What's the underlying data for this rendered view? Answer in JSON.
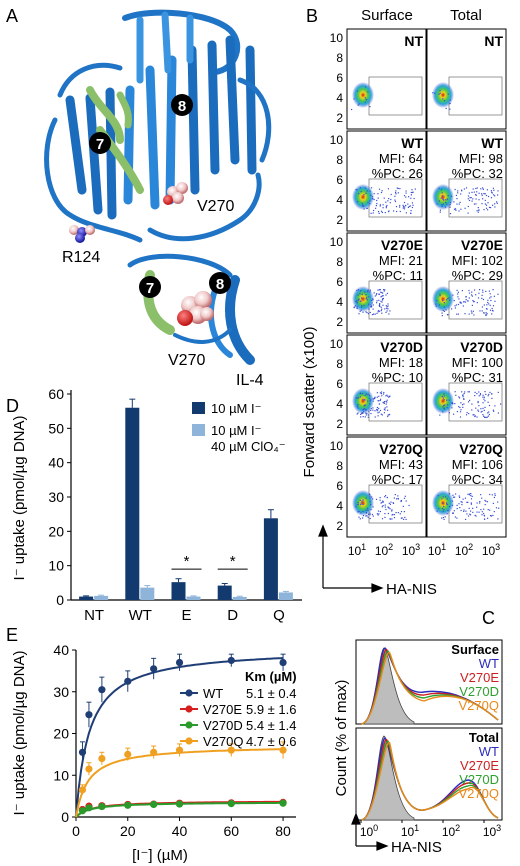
{
  "panel_letters": {
    "a": "A",
    "b": "B",
    "c": "C",
    "d": "D",
    "e": "E"
  },
  "panelA": {
    "helix_labels": [
      "8",
      "7"
    ],
    "residue_labels": [
      "V270",
      "R124"
    ],
    "inset": {
      "helix_labels": [
        "7",
        "8"
      ],
      "residue_label": "V270",
      "loop_label": "IL-4"
    }
  },
  "panelB": {
    "col_headers": [
      "Surface",
      "Total"
    ],
    "rows": [
      {
        "name": "NT",
        "surface": {
          "mfi": "",
          "pc": ""
        },
        "total": {
          "mfi": "",
          "pc": ""
        }
      },
      {
        "name": "WT",
        "surface": {
          "mfi": "MFI: 64",
          "pc": "%PC: 26"
        },
        "total": {
          "mfi": "MFI: 98",
          "pc": "%PC: 32"
        }
      },
      {
        "name": "V270E",
        "surface": {
          "mfi": "MFI: 21",
          "pc": "%PC: 11"
        },
        "total": {
          "mfi": "MFI: 102",
          "pc": "%PC: 29"
        }
      },
      {
        "name": "V270D",
        "surface": {
          "mfi": "MFI: 18",
          "pc": "%PC: 10"
        },
        "total": {
          "mfi": "MFI: 100",
          "pc": "%PC: 31"
        }
      },
      {
        "name": "V270Q",
        "surface": {
          "mfi": "MFI: 43",
          "pc": "%PC: 17"
        },
        "total": {
          "mfi": "MFI: 106",
          "pc": "%PC: 34"
        }
      }
    ],
    "y_ticks": [
      "10",
      "8",
      "6",
      "4",
      "2"
    ],
    "x_ticks": [
      "10",
      "1",
      "10",
      "2",
      "10",
      "3"
    ],
    "ylabel": "Forward scatter (x100)",
    "xlabel": "HA-NIS"
  },
  "panelC": {
    "groups": [
      {
        "title": "Surface",
        "legend": [
          "WT",
          "V270E",
          "V270D",
          "V270Q"
        ]
      },
      {
        "title": "Total",
        "legend": [
          "WT",
          "V270E",
          "V270D",
          "V270Q"
        ]
      }
    ],
    "colors": {
      "WT": "#2b2bbf",
      "V270E": "#cc2020",
      "V270D": "#2ea02e",
      "V270Q": "#e8891c"
    },
    "ylabel": "Count (% of max)",
    "xlabel": "HA-NIS",
    "x_ticks": [
      {
        "b": "10",
        "e": "0"
      },
      {
        "b": "10",
        "e": "1"
      },
      {
        "b": "10",
        "e": "2"
      },
      {
        "b": "10",
        "e": "3"
      }
    ]
  },
  "chart_data": [
    {
      "type": "bar",
      "panel": "D",
      "categories": [
        "NT",
        "WT",
        "E",
        "D",
        "Q"
      ],
      "series": [
        {
          "name": "10 µM I⁻",
          "values": [
            1.0,
            56,
            5.2,
            4.2,
            23.8
          ],
          "errors": [
            0.2,
            2.5,
            1.0,
            0.6,
            2.5
          ],
          "color": "#133a6e"
        },
        {
          "name": "10 µM I⁻ 40 µM ClO₄⁻",
          "values": [
            1.2,
            3.6,
            1.0,
            0.9,
            2.2
          ],
          "errors": [
            0.2,
            0.6,
            0.2,
            0.2,
            0.3
          ],
          "color": "#8fb4d9"
        }
      ],
      "ylabel": "I⁻ uptake (pmol/µg DNA)",
      "ylim": [
        0,
        60
      ],
      "yticks": [
        0,
        10,
        20,
        30,
        40,
        50,
        60
      ],
      "significance": [
        {
          "category": "E",
          "label": "*"
        },
        {
          "category": "D",
          "label": "*"
        }
      ],
      "legend": [
        "10 µM I⁻",
        "10 µM I⁻",
        "40 µM ClO₄⁻"
      ]
    },
    {
      "type": "line",
      "panel": "E",
      "x": [
        0,
        2.5,
        5,
        10,
        20,
        30,
        40,
        60,
        80
      ],
      "series": [
        {
          "name": "WT",
          "km": "5.1 ± 0.4",
          "vmax": 40.5,
          "kmv": 5.1,
          "color": "#1f3e75",
          "y": [
            0,
            15.5,
            24.5,
            30.5,
            32.5,
            35.5,
            37,
            37.5,
            37
          ],
          "err": [
            0,
            2.5,
            3,
            3,
            2.5,
            2.5,
            2,
            1.5,
            2
          ]
        },
        {
          "name": "V270E",
          "km": "5.9 ± 1.6",
          "vmax": 3.9,
          "kmv": 5.9,
          "color": "#d62020",
          "y": [
            0,
            1.8,
            2.6,
            2.7,
            3.0,
            3.1,
            3.3,
            3.4,
            3.5
          ],
          "err": [
            0,
            0.3,
            0.3,
            0.3,
            0.3,
            0.3,
            0.3,
            0.3,
            0.4
          ]
        },
        {
          "name": "V270D",
          "km": "5.4 ± 1.4",
          "vmax": 3.6,
          "kmv": 5.4,
          "color": "#2a9a2a",
          "y": [
            0,
            1.5,
            2.2,
            2.5,
            2.8,
            3.0,
            3.1,
            3.2,
            3.3
          ],
          "err": [
            0,
            0.3,
            0.3,
            0.3,
            0.3,
            0.3,
            0.3,
            0.3,
            0.3
          ]
        },
        {
          "name": "V270Q",
          "km": "4.7 ± 0.6",
          "vmax": 17.2,
          "kmv": 4.7,
          "color": "#f0a020",
          "y": [
            0,
            6.5,
            11.5,
            14,
            15,
            15.5,
            16,
            16,
            16
          ],
          "err": [
            0,
            1.2,
            1.5,
            1.5,
            1.5,
            1.5,
            1.5,
            1.5,
            2
          ]
        }
      ],
      "legend_header": "Km (µM)",
      "xlabel": "[I⁻] (µM)",
      "ylabel": "I⁻ uptake (pmol/µg DNA)",
      "xlim": [
        0,
        85
      ],
      "ylim": [
        0,
        40
      ],
      "xticks": [
        0,
        20,
        40,
        60,
        80
      ],
      "yticks": [
        0,
        10,
        20,
        30,
        40
      ]
    }
  ]
}
